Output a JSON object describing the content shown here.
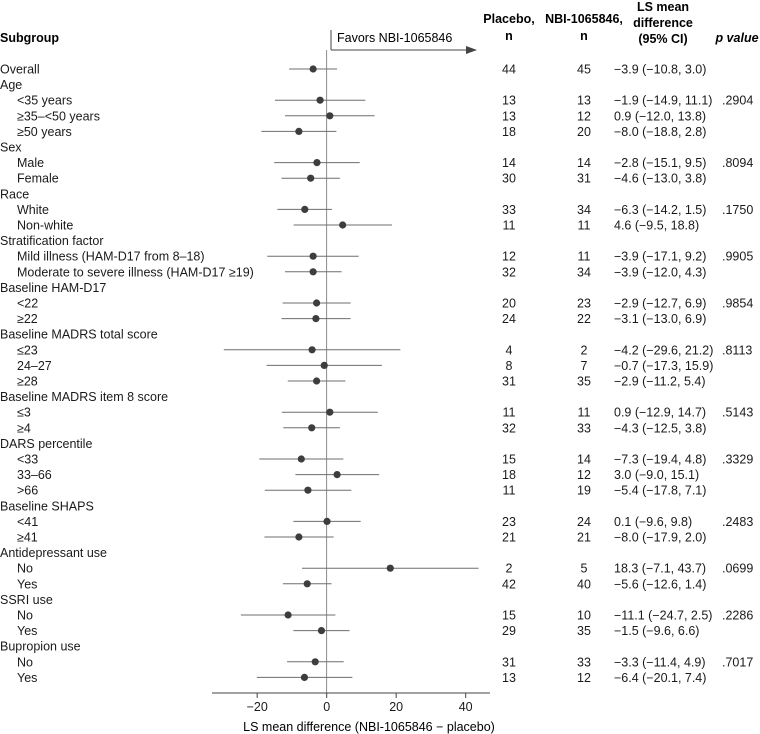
{
  "chart_data": {
    "type": "forest",
    "headers": {
      "subgroup": "Subgroup",
      "placebo": [
        "Placebo,",
        "n"
      ],
      "nbi": [
        "NBI-1065846,",
        "n"
      ],
      "ls": [
        "LS mean",
        "difference",
        "(95% CI)"
      ],
      "p": "p value"
    },
    "favors_label": "Favors NBI-1065846",
    "xlabel": "LS mean difference (NBI-1065846 − placebo)",
    "xlim": [
      -33,
      47
    ],
    "xticks": [
      -20,
      0,
      20,
      40
    ],
    "xtick_labels": [
      "−20",
      "0",
      "20",
      "40"
    ],
    "rows": [
      {
        "label": "Overall",
        "indent": 0,
        "mean": -3.9,
        "lo": -10.8,
        "hi": 3.0,
        "placebo_n": "44",
        "nbi_n": "45",
        "ci_text": "−3.9 (−10.8, 3.0)",
        "p": ""
      },
      {
        "label": "Age",
        "indent": 0
      },
      {
        "label": "<35 years",
        "indent": 1,
        "mean": -1.9,
        "lo": -14.9,
        "hi": 11.1,
        "placebo_n": "13",
        "nbi_n": "13",
        "ci_text": "−1.9 (−14.9, 11.1)",
        "p": ".2904"
      },
      {
        "label": "≥35–<50 years",
        "indent": 1,
        "mean": 0.9,
        "lo": -12.0,
        "hi": 13.8,
        "placebo_n": "13",
        "nbi_n": "12",
        "ci_text": "0.9 (−12.0, 13.8)",
        "p": ""
      },
      {
        "label": "≥50 years",
        "indent": 1,
        "mean": -8.0,
        "lo": -18.8,
        "hi": 2.8,
        "placebo_n": "18",
        "nbi_n": "20",
        "ci_text": "−8.0 (−18.8, 2.8)",
        "p": ""
      },
      {
        "label": "Sex",
        "indent": 0
      },
      {
        "label": "Male",
        "indent": 1,
        "mean": -2.8,
        "lo": -15.1,
        "hi": 9.5,
        "placebo_n": "14",
        "nbi_n": "14",
        "ci_text": "−2.8 (−15.1, 9.5)",
        "p": ".8094"
      },
      {
        "label": "Female",
        "indent": 1,
        "mean": -4.6,
        "lo": -13.0,
        "hi": 3.8,
        "placebo_n": "30",
        "nbi_n": "31",
        "ci_text": "−4.6 (−13.0, 3.8)",
        "p": ""
      },
      {
        "label": "Race",
        "indent": 0
      },
      {
        "label": "White",
        "indent": 1,
        "mean": -6.3,
        "lo": -14.2,
        "hi": 1.5,
        "placebo_n": "33",
        "nbi_n": "34",
        "ci_text": "−6.3 (−14.2, 1.5)",
        "p": ".1750"
      },
      {
        "label": "Non-white",
        "indent": 1,
        "mean": 4.6,
        "lo": -9.5,
        "hi": 18.8,
        "placebo_n": "11",
        "nbi_n": "11",
        "ci_text": "4.6 (−9.5, 18.8)",
        "p": ""
      },
      {
        "label": "Stratification factor",
        "indent": 0
      },
      {
        "label": "Mild illness (HAM-D17 from 8–18)",
        "indent": 1,
        "mean": -3.9,
        "lo": -17.1,
        "hi": 9.2,
        "placebo_n": "12",
        "nbi_n": "11",
        "ci_text": "−3.9 (−17.1, 9.2)",
        "p": ".9905"
      },
      {
        "label": "Moderate to severe illness (HAM-D17 ≥19)",
        "indent": 1,
        "mean": -3.9,
        "lo": -12.0,
        "hi": 4.3,
        "placebo_n": "32",
        "nbi_n": "34",
        "ci_text": "−3.9 (−12.0, 4.3)",
        "p": ""
      },
      {
        "label": "Baseline HAM-D17",
        "indent": 0
      },
      {
        "label": "<22",
        "indent": 1,
        "mean": -2.9,
        "lo": -12.7,
        "hi": 6.9,
        "placebo_n": "20",
        "nbi_n": "23",
        "ci_text": "−2.9 (−12.7, 6.9)",
        "p": ".9854"
      },
      {
        "label": "≥22",
        "indent": 1,
        "mean": -3.1,
        "lo": -13.0,
        "hi": 6.9,
        "placebo_n": "24",
        "nbi_n": "22",
        "ci_text": "−3.1 (−13.0, 6.9)",
        "p": ""
      },
      {
        "label": "Baseline MADRS total score",
        "indent": 0
      },
      {
        "label": "≤23",
        "indent": 1,
        "mean": -4.2,
        "lo": -29.6,
        "hi": 21.2,
        "placebo_n": "4",
        "nbi_n": "2",
        "ci_text": "−4.2 (−29.6, 21.2)",
        "p": ".8113"
      },
      {
        "label": "24–27",
        "indent": 1,
        "mean": -0.7,
        "lo": -17.3,
        "hi": 15.9,
        "placebo_n": "8",
        "nbi_n": "7",
        "ci_text": "−0.7 (−17.3, 15.9)",
        "p": ""
      },
      {
        "label": "≥28",
        "indent": 1,
        "mean": -2.9,
        "lo": -11.2,
        "hi": 5.4,
        "placebo_n": "31",
        "nbi_n": "35",
        "ci_text": "−2.9 (−11.2, 5.4)",
        "p": ""
      },
      {
        "label": "Baseline MADRS item 8 score",
        "indent": 0
      },
      {
        "label": "≤3",
        "indent": 1,
        "mean": 0.9,
        "lo": -12.9,
        "hi": 14.7,
        "placebo_n": "11",
        "nbi_n": "11",
        "ci_text": "0.9 (−12.9, 14.7)",
        "p": ".5143"
      },
      {
        "label": "≥4",
        "indent": 1,
        "mean": -4.3,
        "lo": -12.5,
        "hi": 3.8,
        "placebo_n": "32",
        "nbi_n": "33",
        "ci_text": "−4.3 (−12.5, 3.8)",
        "p": ""
      },
      {
        "label": "DARS percentile",
        "indent": 0
      },
      {
        "label": "<33",
        "indent": 1,
        "mean": -7.3,
        "lo": -19.4,
        "hi": 4.8,
        "placebo_n": "15",
        "nbi_n": "14",
        "ci_text": "−7.3 (−19.4, 4.8)",
        "p": ".3329"
      },
      {
        "label": "33–66",
        "indent": 1,
        "mean": 3.0,
        "lo": -9.0,
        "hi": 15.1,
        "placebo_n": "18",
        "nbi_n": "12",
        "ci_text": "3.0 (−9.0, 15.1)",
        "p": ""
      },
      {
        "label": ">66",
        "indent": 1,
        "mean": -5.4,
        "lo": -17.8,
        "hi": 7.1,
        "placebo_n": "11",
        "nbi_n": "19",
        "ci_text": "−5.4 (−17.8, 7.1)",
        "p": ""
      },
      {
        "label": "Baseline SHAPS",
        "indent": 0
      },
      {
        "label": "<41",
        "indent": 1,
        "mean": 0.1,
        "lo": -9.6,
        "hi": 9.8,
        "placebo_n": "23",
        "nbi_n": "24",
        "ci_text": "0.1 (−9.6, 9.8)",
        "p": ".2483"
      },
      {
        "label": "≥41",
        "indent": 1,
        "mean": -8.0,
        "lo": -17.9,
        "hi": 2.0,
        "placebo_n": "21",
        "nbi_n": "21",
        "ci_text": "−8.0 (−17.9, 2.0)",
        "p": ""
      },
      {
        "label": "Antidepressant use",
        "indent": 0
      },
      {
        "label": "No",
        "indent": 1,
        "mean": 18.3,
        "lo": -7.1,
        "hi": 43.7,
        "placebo_n": "2",
        "nbi_n": "5",
        "ci_text": "18.3 (−7.1, 43.7)",
        "p": ".0699"
      },
      {
        "label": "Yes",
        "indent": 1,
        "mean": -5.6,
        "lo": -12.6,
        "hi": 1.4,
        "placebo_n": "42",
        "nbi_n": "40",
        "ci_text": "−5.6 (−12.6, 1.4)",
        "p": ""
      },
      {
        "label": "SSRI use",
        "indent": 0
      },
      {
        "label": "No",
        "indent": 1,
        "mean": -11.1,
        "lo": -24.7,
        "hi": 2.5,
        "placebo_n": "15",
        "nbi_n": "10",
        "ci_text": "−11.1 (−24.7, 2.5)",
        "p": ".2286"
      },
      {
        "label": "Yes",
        "indent": 1,
        "mean": -1.5,
        "lo": -9.6,
        "hi": 6.6,
        "placebo_n": "29",
        "nbi_n": "35",
        "ci_text": "−1.5 (−9.6, 6.6)",
        "p": ""
      },
      {
        "label": "Bupropion use",
        "indent": 0
      },
      {
        "label": "No",
        "indent": 1,
        "mean": -3.3,
        "lo": -11.4,
        "hi": 4.9,
        "placebo_n": "31",
        "nbi_n": "33",
        "ci_text": "−3.3 (−11.4, 4.9)",
        "p": ".7017"
      },
      {
        "label": "Yes",
        "indent": 1,
        "mean": -6.4,
        "lo": -20.1,
        "hi": 7.4,
        "placebo_n": "13",
        "nbi_n": "12",
        "ci_text": "−6.4 (−20.1, 7.4)",
        "p": ""
      }
    ]
  },
  "colors": {
    "point": "#3d3d3d",
    "line": "#6e6e6e",
    "axis": "#444444",
    "text": "#1a1a1a"
  }
}
